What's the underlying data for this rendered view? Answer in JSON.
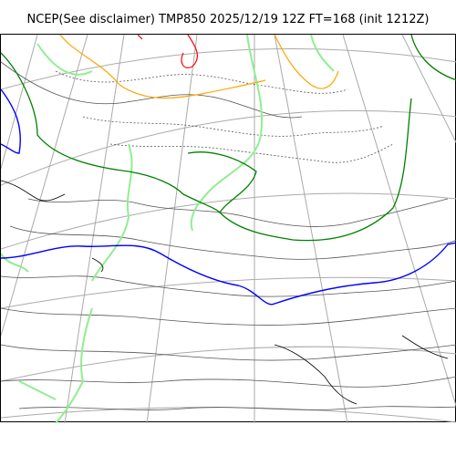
{
  "title": "NCEP(See disclaimer) TMP850 2025/12/19 12Z FT=168 (init 1212Z)",
  "colors": {
    "coastline": "#000000",
    "graticule": "#aaaaaa",
    "isotherm": "#555555",
    "zero_line": "#0000ff",
    "green_line": "#008000",
    "orange_line": "#ffa500",
    "red_line": "#ff0000",
    "light_green_line": "#90ee90"
  }
}
